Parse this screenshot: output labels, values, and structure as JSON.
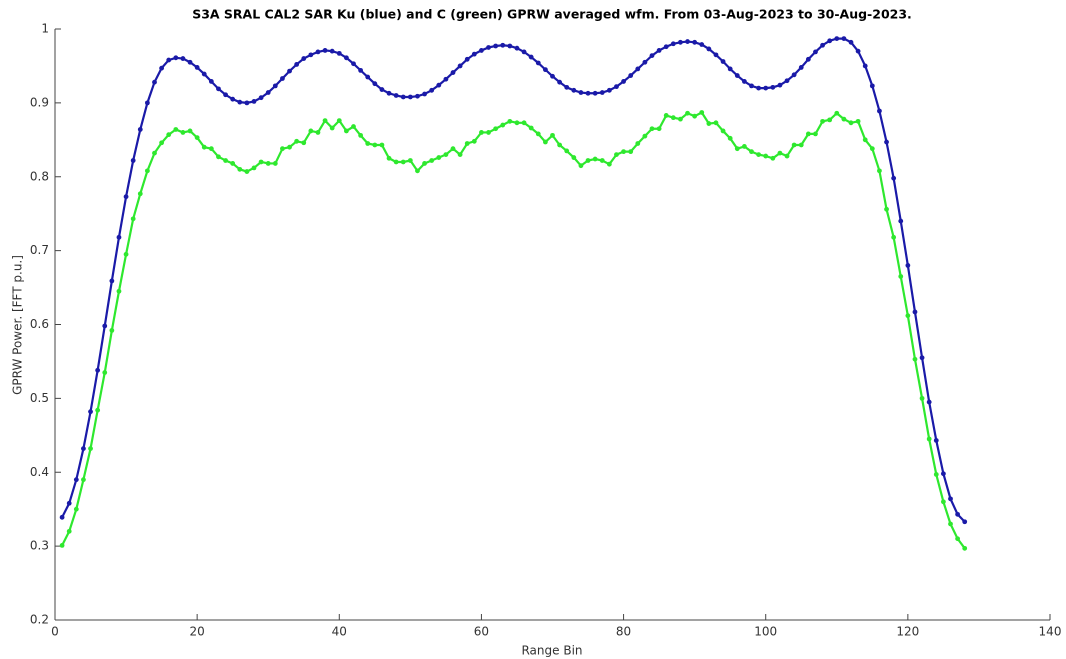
{
  "chart_data": {
    "type": "line",
    "title": "S3A SRAL CAL2 SAR Ku (blue) and C (green) GPRW averaged wfm. From 03-Aug-2023 to 30-Aug-2023.",
    "xlabel": "Range Bin",
    "ylabel": "GPRW Power. [FFT p.u.]",
    "x": [
      1,
      2,
      3,
      4,
      5,
      6,
      7,
      8,
      9,
      10,
      11,
      12,
      13,
      14,
      15,
      16,
      17,
      18,
      19,
      20,
      21,
      22,
      23,
      24,
      25,
      26,
      27,
      28,
      29,
      30,
      31,
      32,
      33,
      34,
      35,
      36,
      37,
      38,
      39,
      40,
      41,
      42,
      43,
      44,
      45,
      46,
      47,
      48,
      49,
      50,
      51,
      52,
      53,
      54,
      55,
      56,
      57,
      58,
      59,
      60,
      61,
      62,
      63,
      64,
      65,
      66,
      67,
      68,
      69,
      70,
      71,
      72,
      73,
      74,
      75,
      76,
      77,
      78,
      79,
      80,
      81,
      82,
      83,
      84,
      85,
      86,
      87,
      88,
      89,
      90,
      91,
      92,
      93,
      94,
      95,
      96,
      97,
      98,
      99,
      100,
      101,
      102,
      103,
      104,
      105,
      106,
      107,
      108,
      109,
      110,
      111,
      112,
      113,
      114,
      115,
      116,
      117,
      118,
      119,
      120,
      121,
      122,
      123,
      124,
      125,
      126,
      127,
      128
    ],
    "series": [
      {
        "color": "#1a1aa8",
        "values": [
          0.339,
          0.358,
          0.39,
          0.432,
          0.482,
          0.538,
          0.598,
          0.659,
          0.718,
          0.773,
          0.822,
          0.864,
          0.9,
          0.928,
          0.947,
          0.958,
          0.961,
          0.96,
          0.955,
          0.948,
          0.939,
          0.929,
          0.919,
          0.911,
          0.905,
          0.901,
          0.9,
          0.902,
          0.907,
          0.914,
          0.923,
          0.933,
          0.943,
          0.952,
          0.96,
          0.965,
          0.969,
          0.971,
          0.97,
          0.967,
          0.961,
          0.953,
          0.944,
          0.935,
          0.926,
          0.918,
          0.913,
          0.91,
          0.908,
          0.908,
          0.909,
          0.912,
          0.917,
          0.924,
          0.932,
          0.941,
          0.95,
          0.959,
          0.966,
          0.971,
          0.975,
          0.977,
          0.978,
          0.977,
          0.974,
          0.969,
          0.962,
          0.954,
          0.945,
          0.936,
          0.928,
          0.921,
          0.917,
          0.914,
          0.913,
          0.913,
          0.914,
          0.917,
          0.922,
          0.929,
          0.937,
          0.946,
          0.955,
          0.964,
          0.971,
          0.976,
          0.98,
          0.982,
          0.983,
          0.982,
          0.979,
          0.973,
          0.965,
          0.956,
          0.946,
          0.937,
          0.929,
          0.923,
          0.92,
          0.92,
          0.921,
          0.924,
          0.93,
          0.938,
          0.948,
          0.959,
          0.969,
          0.978,
          0.984,
          0.987,
          0.987,
          0.982,
          0.97,
          0.95,
          0.923,
          0.889,
          0.847,
          0.798,
          0.74,
          0.68,
          0.617,
          0.555,
          0.495,
          0.443,
          0.398,
          0.364,
          0.343,
          0.333
        ]
      },
      {
        "color": "#2ee82e",
        "values": [
          0.301,
          0.32,
          0.35,
          0.39,
          0.432,
          0.484,
          0.535,
          0.592,
          0.645,
          0.695,
          0.743,
          0.777,
          0.808,
          0.832,
          0.846,
          0.857,
          0.864,
          0.86,
          0.862,
          0.853,
          0.84,
          0.838,
          0.827,
          0.822,
          0.818,
          0.81,
          0.807,
          0.812,
          0.82,
          0.818,
          0.818,
          0.838,
          0.84,
          0.848,
          0.846,
          0.862,
          0.86,
          0.876,
          0.866,
          0.876,
          0.862,
          0.868,
          0.856,
          0.845,
          0.843,
          0.843,
          0.825,
          0.82,
          0.82,
          0.822,
          0.808,
          0.818,
          0.822,
          0.826,
          0.83,
          0.838,
          0.83,
          0.845,
          0.848,
          0.86,
          0.86,
          0.865,
          0.87,
          0.875,
          0.873,
          0.873,
          0.866,
          0.858,
          0.847,
          0.856,
          0.843,
          0.835,
          0.826,
          0.815,
          0.822,
          0.824,
          0.822,
          0.817,
          0.83,
          0.834,
          0.834,
          0.845,
          0.855,
          0.865,
          0.865,
          0.883,
          0.88,
          0.878,
          0.886,
          0.882,
          0.887,
          0.872,
          0.873,
          0.862,
          0.852,
          0.838,
          0.841,
          0.834,
          0.83,
          0.828,
          0.825,
          0.832,
          0.828,
          0.843,
          0.843,
          0.858,
          0.858,
          0.875,
          0.877,
          0.886,
          0.878,
          0.873,
          0.875,
          0.85,
          0.838,
          0.808,
          0.756,
          0.718,
          0.665,
          0.612,
          0.553,
          0.5,
          0.445,
          0.397,
          0.36,
          0.33,
          0.31,
          0.297
        ]
      }
    ],
    "xlim": [
      0,
      140
    ],
    "xticks": [
      0,
      20,
      40,
      60,
      80,
      100,
      120,
      140
    ],
    "ylim": [
      0.2,
      1
    ],
    "yticks": [
      0.2,
      0.3,
      0.4,
      0.5,
      0.6,
      0.7,
      0.8,
      0.9,
      1
    ]
  }
}
